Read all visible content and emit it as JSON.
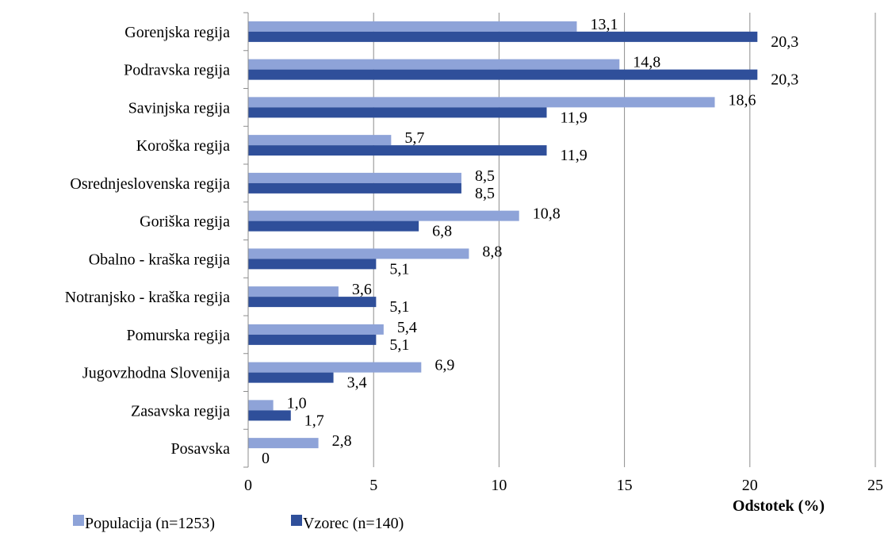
{
  "chart_data": {
    "type": "bar",
    "orientation": "horizontal",
    "title": "",
    "xlabel": "Odstotek (%)",
    "ylabel": "",
    "xlim": [
      0,
      25
    ],
    "xticks": [
      "0",
      "5",
      "10",
      "15",
      "20",
      "25"
    ],
    "grid": "vertical",
    "legend_position": "bottom-left",
    "categories": [
      "Gorenjska regija",
      "Podravska regija",
      "Savinjska regija",
      "Koroška regija",
      "Osrednjeslovenska regija",
      "Goriška regija",
      "Obalno - kraška regija",
      "Notranjsko - kraška regija",
      "Pomurska regija",
      "Jugovzhodna Slovenija",
      "Zasavska regija",
      "Posavska"
    ],
    "series": [
      {
        "name": "Populacija (n=1253)",
        "color": "#8EA3D8",
        "values": [
          13.1,
          14.8,
          18.6,
          5.7,
          8.5,
          10.8,
          8.8,
          3.6,
          5.4,
          6.9,
          1.0,
          2.8
        ],
        "labels": [
          "13,1",
          "14,8",
          "18,6",
          "5,7",
          "8,5",
          "10,8",
          "8,8",
          "3,6",
          "5,4",
          "6,9",
          "1,0",
          "2,8"
        ]
      },
      {
        "name": "Vzorec (n=140)",
        "color": "#2F4F9A",
        "values": [
          20.3,
          20.3,
          11.9,
          11.9,
          8.5,
          6.8,
          5.1,
          5.1,
          5.1,
          3.4,
          1.7,
          0
        ],
        "labels": [
          "20,3",
          "20,3",
          "11,9",
          "11,9",
          "8,5",
          "6,8",
          "5,1",
          "5,1",
          "5,1",
          "3,4",
          "1,7",
          "0"
        ]
      }
    ]
  }
}
